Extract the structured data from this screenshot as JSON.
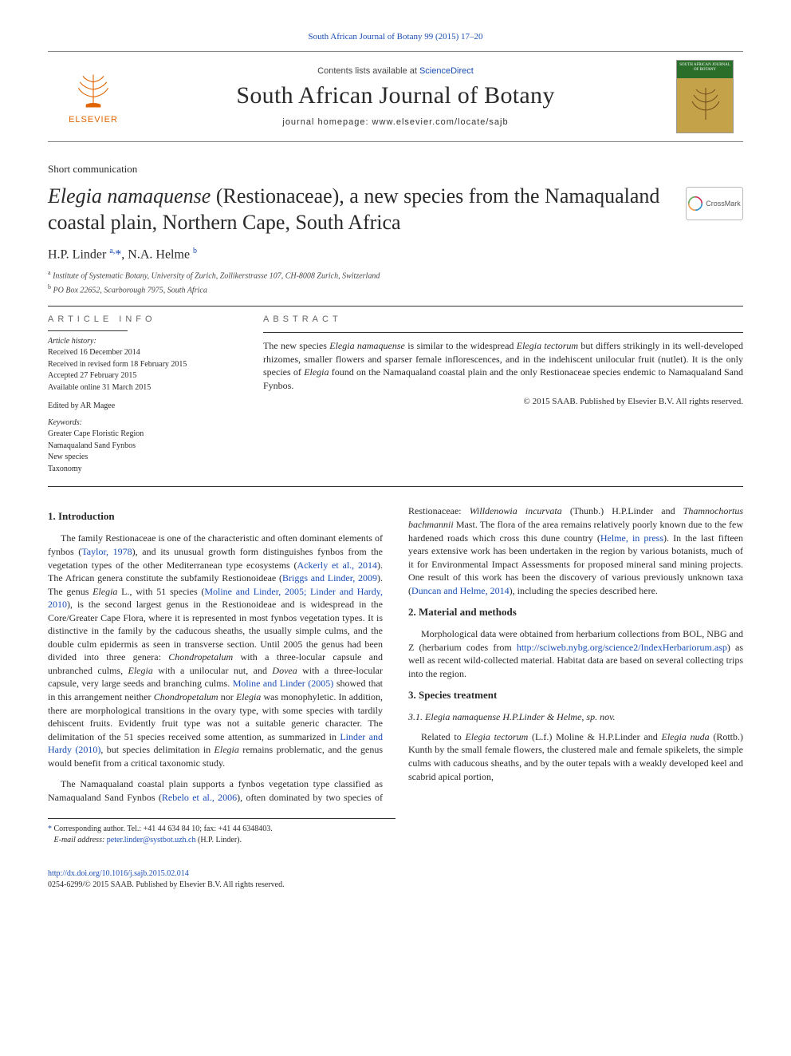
{
  "colors": {
    "link": "#1a4db3",
    "text": "#2a2a2a",
    "rule": "#333333",
    "brand_orange": "#e06400",
    "cover_bg": "#c4a24a",
    "cover_band": "#2a6e2a"
  },
  "typography": {
    "body_family": "Georgia, 'Times New Roman', serif",
    "body_size_pt": 9,
    "title_size_pt": 20,
    "journal_size_pt": 23
  },
  "top_link": {
    "label": "South African Journal of Botany 99 (2015) 17–20"
  },
  "masthead": {
    "brand": "ELSEVIER",
    "contents_prefix": "Contents lists available at ",
    "contents_link": "ScienceDirect",
    "journal_name": "South African Journal of Botany",
    "homepage_label": "journal homepage: www.elsevier.com/locate/sajb",
    "cover_text": "SOUTH AFRICAN JOURNAL OF BOTANY"
  },
  "article": {
    "type": "Short communication",
    "title_html": "<em>Elegia namaquense</em> (Restionaceae), a new species from the Namaqualand coastal plain, Northern Cape, South Africa",
    "crossmark": "CrossMark"
  },
  "authors": {
    "line_html": "H.P. Linder <sup>a,</sup><span class='star'>*</span>, N.A. Helme <sup>b</sup>"
  },
  "affiliations": [
    "Institute of Systematic Botany, University of Zurich, Zollikerstrasse 107, CH-8008 Zurich, Switzerland",
    "PO Box 22652, Scarborough 7975, South Africa"
  ],
  "info": {
    "heading": "ARTICLE INFO",
    "history_label": "Article history:",
    "history": [
      "Received 16 December 2014",
      "Received in revised form 18 February 2015",
      "Accepted 27 February 2015",
      "Available online 31 March 2015"
    ],
    "edited_by": "Edited by AR Magee",
    "keywords_label": "Keywords:",
    "keywords": [
      "Greater Cape Floristic Region",
      "Namaqualand Sand Fynbos",
      "New species",
      "Taxonomy"
    ]
  },
  "abstract": {
    "heading": "ABSTRACT",
    "text_html": "The new species <em>Elegia namaquense</em> is similar to the widespread <em>Elegia tectorum</em> but differs strikingly in its well-developed rhizomes, smaller flowers and sparser female inflorescences, and in the indehiscent unilocular fruit (nutlet). It is the only species of <em>Elegia</em> found on the Namaqualand coastal plain and the only Restionaceae species endemic to Namaqualand Sand Fynbos.",
    "copyright": "© 2015 SAAB. Published by Elsevier B.V. All rights reserved."
  },
  "sections": {
    "s1": {
      "heading": "1. Introduction",
      "p1_html": "The family Restionaceae is one of the characteristic and often dominant elements of fynbos (<a class='ref' href='#'>Taylor, 1978</a>), and its unusual growth form distinguishes fynbos from the vegetation types of the other Mediterranean type ecosystems (<a class='ref' href='#'>Ackerly et al., 2014</a>). The African genera constitute the subfamily Restionoideae (<a class='ref' href='#'>Briggs and Linder, 2009</a>). The genus <em>Elegia</em> L., with 51 species (<a class='ref' href='#'>Moline and Linder, 2005; Linder and Hardy, 2010</a>), is the second largest genus in the Restionoideae and is widespread in the Core/Greater Cape Flora, where it is represented in most fynbos vegetation types. It is distinctive in the family by the caducous sheaths, the usually simple culms, and the double culm epidermis as seen in transverse section. Until 2005 the genus had been divided into three genera: <em>Chondropetalum</em> with a three-locular capsule and unbranched culms, <em>Elegia</em> with a unilocular nut, and <em>Dovea</em> with a three-locular capsule, very large seeds and branching culms. <a class='ref' href='#'>Moline and Linder (2005)</a> showed that in this arrangement neither <em>Chondropetalum</em> nor <em>Elegia</em> was monophyletic. In addition, there are morphological transitions in the ovary type, with some species with tardily dehiscent fruits. Evidently fruit type was not a suitable generic character. The delimitation of the 51 species received some attention, as summarized in <a class='ref' href='#'>Linder and Hardy (2010)</a>, but species delimitation in <em>Elegia</em> remains problematic, and the genus would benefit from a critical taxonomic study.",
      "p2_html": "The Namaqualand coastal plain supports a fynbos vegetation type classified as Namaqualand Sand Fynbos (<a class='ref' href='#'>Rebelo et al., 2006</a>), often dominated by two species of Restionaceae: <em>Willdenowia incurvata</em> (Thunb.) H.P.Linder and <em>Thamnochortus bachmannii</em> Mast. The flora of the area remains relatively poorly known due to the few hardened roads which cross this dune country (<a class='ref' href='#'>Helme, in press</a>). In the last fifteen years extensive work has been undertaken in the region by various botanists, much of it for Environmental Impact Assessments for proposed mineral sand mining projects. One result of this work has been the discovery of various previously unknown taxa (<a class='ref' href='#'>Duncan and Helme, 2014</a>), including the species described here."
    },
    "s2": {
      "heading": "2. Material and methods",
      "p1_html": "Morphological data were obtained from herbarium collections from BOL, NBG and Z (herbarium codes from <a class='ref' href='#'>http://sciweb.nybg.org/science2/IndexHerbariorum.asp</a>) as well as recent wild-collected material. Habitat data are based on several collecting trips into the region."
    },
    "s3": {
      "heading": "3. Species treatment",
      "sub_heading": "3.1. Elegia namaquense H.P.Linder & Helme, sp. nov.",
      "p1_html": "Related to <em>Elegia tectorum</em> (L.f.) Moline & H.P.Linder and <em>Elegia nuda</em> (Rottb.) Kunth by the small female flowers, the clustered male and female spikelets, the simple culms with caducous sheaths, and by the outer tepals with a weakly developed keel and scabrid apical portion,"
    }
  },
  "correspondence": {
    "star": "*",
    "text": "Corresponding author. Tel.: +41 44 634 84 10; fax: +41 44 6348403.",
    "email_label": "E-mail address:",
    "email": "peter.linder@systbot.uzh.ch",
    "email_owner": "(H.P. Linder)."
  },
  "footer": {
    "doi": "http://dx.doi.org/10.1016/j.sajb.2015.02.014",
    "issn_line": "0254-6299/© 2015 SAAB. Published by Elsevier B.V. All rights reserved."
  }
}
